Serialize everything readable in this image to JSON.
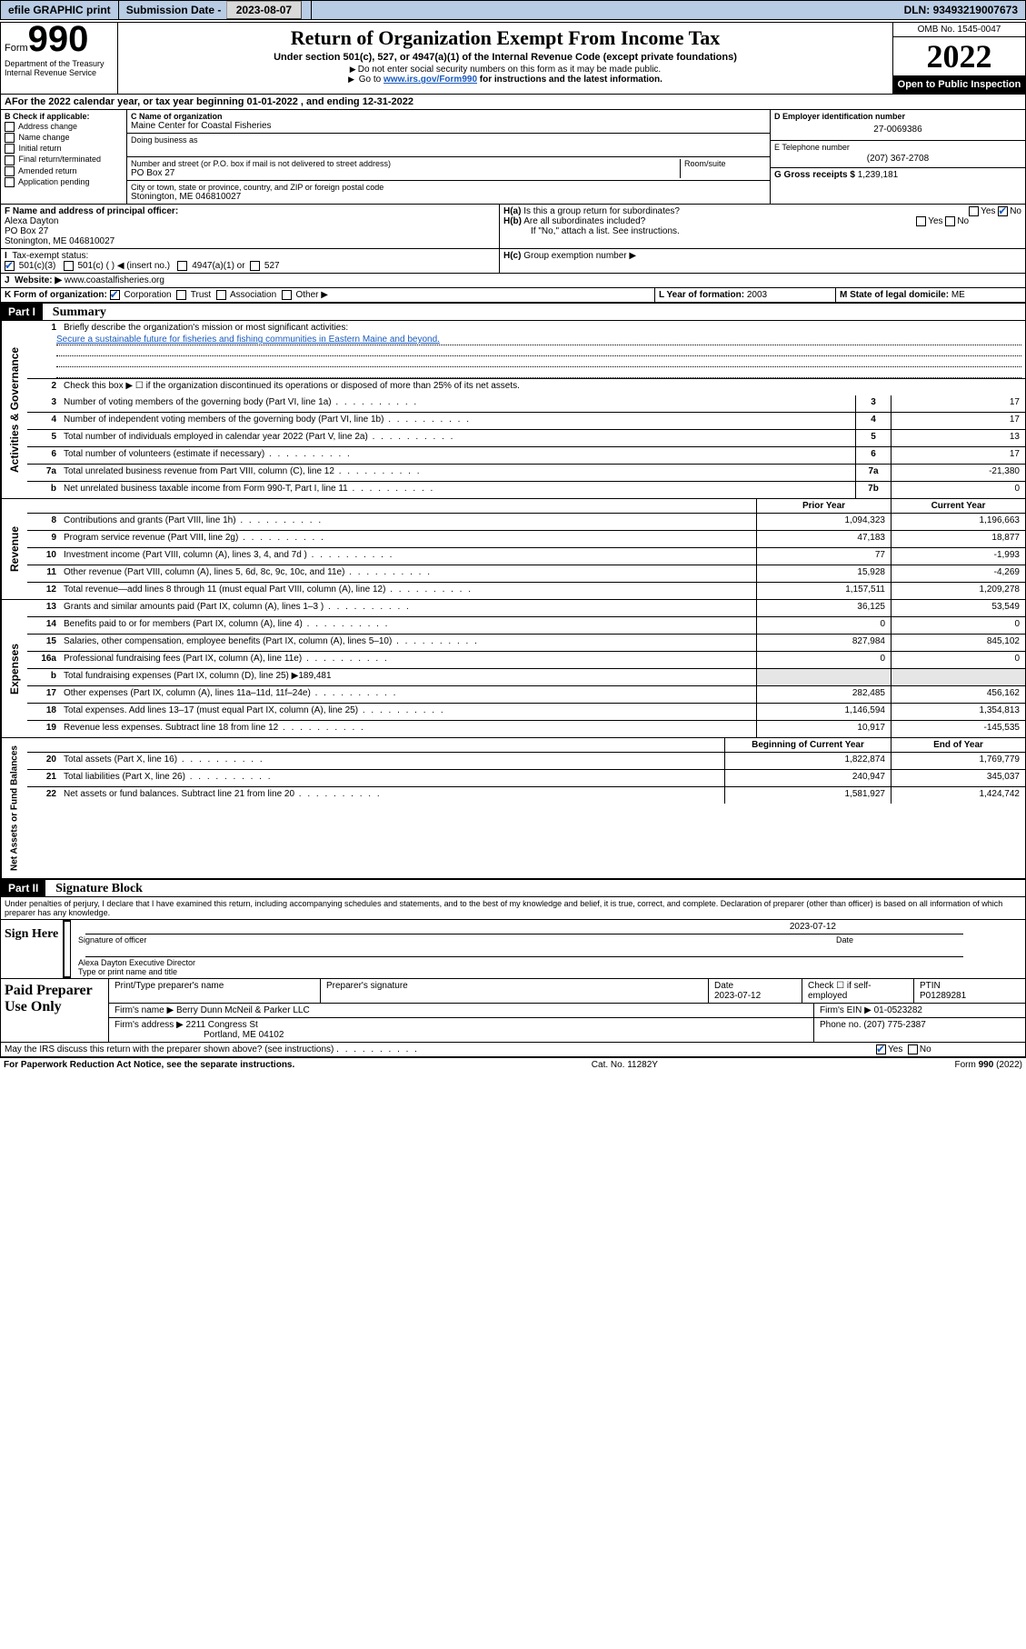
{
  "topbar": {
    "efile": "efile GRAPHIC print",
    "submission_label": "Submission Date - ",
    "submission_date": "2023-08-07",
    "dln_label": "DLN: ",
    "dln": "93493219007673"
  },
  "header": {
    "form_word": "Form",
    "form_num": "990",
    "dept": "Department of the Treasury\nInternal Revenue Service",
    "title": "Return of Organization Exempt From Income Tax",
    "subtitle": "Under section 501(c), 527, or 4947(a)(1) of the Internal Revenue Code (except private foundations)",
    "note1": "Do not enter social security numbers on this form as it may be made public.",
    "note2_pre": "Go to ",
    "note2_link": "www.irs.gov/Form990",
    "note2_post": " for instructions and the latest information.",
    "omb": "OMB No. 1545-0047",
    "year": "2022",
    "inspect": "Open to Public Inspection"
  },
  "lineA": "For the 2022 calendar year, or tax year beginning 01-01-2022    , and ending 12-31-2022",
  "colB": {
    "label": "B Check if applicable:",
    "items": [
      "Address change",
      "Name change",
      "Initial return",
      "Final return/terminated",
      "Amended return",
      "Application pending"
    ]
  },
  "colC": {
    "name_label": "C Name of organization",
    "name": "Maine Center for Coastal Fisheries",
    "dba_label": "Doing business as",
    "street_label": "Number and street (or P.O. box if mail is not delivered to street address)",
    "room_label": "Room/suite",
    "street": "PO Box 27",
    "city_label": "City or town, state or province, country, and ZIP or foreign postal code",
    "city": "Stonington, ME  046810027"
  },
  "colDE": {
    "d_label": "D Employer identification number",
    "ein": "27-0069386",
    "e_label": "E Telephone number",
    "phone": "(207) 367-2708",
    "g_label": "G Gross receipts $ ",
    "g_val": "1,239,181"
  },
  "lineF": {
    "label": "F  Name and address of principal officer:",
    "name": "Alexa Dayton",
    "addr1": "PO Box 27",
    "addr2": "Stonington, ME  046810027"
  },
  "lineH": {
    "a": "Is this a group return for subordinates?",
    "b": "Are all subordinates included?",
    "note": "If \"No,\" attach a list. See instructions.",
    "c_label": "Group exemption number ▶"
  },
  "lineI": {
    "label": "Tax-exempt status:",
    "opts": [
      "501(c)(3)",
      "501(c) (  ) ◀ (insert no.)",
      "4947(a)(1) or",
      "527"
    ]
  },
  "lineJ": {
    "label": "Website: ▶",
    "url": "www.coastalfisheries.org"
  },
  "lineK": {
    "label": "K Form of organization:",
    "opts": [
      "Corporation",
      "Trust",
      "Association",
      "Other ▶"
    ]
  },
  "lineL": {
    "label": "L Year of formation: ",
    "val": "2003"
  },
  "lineM": {
    "label": "M State of legal domicile: ",
    "val": "ME"
  },
  "part1": {
    "hdr": "Part I",
    "title": "Summary",
    "q1_label": "Briefly describe the organization's mission or most significant activities:",
    "q1_text": "Secure a sustainable future for fisheries and fishing communities in Eastern Maine and beyond.",
    "q2": "Check this box ▶ ☐  if the organization discontinued its operations or disposed of more than 25% of its net assets.",
    "side_ag": "Activities & Governance",
    "side_rev": "Revenue",
    "side_exp": "Expenses",
    "side_na": "Net Assets or Fund Balances",
    "col_prior": "Prior Year",
    "col_curr": "Current Year",
    "col_beg": "Beginning of Current Year",
    "col_end": "End of Year",
    "rows_ag": [
      {
        "n": "3",
        "d": "Number of voting members of the governing body (Part VI, line 1a)",
        "box": "3",
        "v": "17"
      },
      {
        "n": "4",
        "d": "Number of independent voting members of the governing body (Part VI, line 1b)",
        "box": "4",
        "v": "17"
      },
      {
        "n": "5",
        "d": "Total number of individuals employed in calendar year 2022 (Part V, line 2a)",
        "box": "5",
        "v": "13"
      },
      {
        "n": "6",
        "d": "Total number of volunteers (estimate if necessary)",
        "box": "6",
        "v": "17"
      },
      {
        "n": "7a",
        "d": "Total unrelated business revenue from Part VIII, column (C), line 12",
        "box": "7a",
        "v": "-21,380"
      },
      {
        "n": "b",
        "d": "Net unrelated business taxable income from Form 990-T, Part I, line 11",
        "box": "7b",
        "v": "0"
      }
    ],
    "rows_rev": [
      {
        "n": "8",
        "d": "Contributions and grants (Part VIII, line 1h)",
        "p": "1,094,323",
        "c": "1,196,663"
      },
      {
        "n": "9",
        "d": "Program service revenue (Part VIII, line 2g)",
        "p": "47,183",
        "c": "18,877"
      },
      {
        "n": "10",
        "d": "Investment income (Part VIII, column (A), lines 3, 4, and 7d )",
        "p": "77",
        "c": "-1,993"
      },
      {
        "n": "11",
        "d": "Other revenue (Part VIII, column (A), lines 5, 6d, 8c, 9c, 10c, and 11e)",
        "p": "15,928",
        "c": "-4,269"
      },
      {
        "n": "12",
        "d": "Total revenue—add lines 8 through 11 (must equal Part VIII, column (A), line 12)",
        "p": "1,157,511",
        "c": "1,209,278"
      }
    ],
    "rows_exp": [
      {
        "n": "13",
        "d": "Grants and similar amounts paid (Part IX, column (A), lines 1–3 )",
        "p": "36,125",
        "c": "53,549"
      },
      {
        "n": "14",
        "d": "Benefits paid to or for members (Part IX, column (A), line 4)",
        "p": "0",
        "c": "0"
      },
      {
        "n": "15",
        "d": "Salaries, other compensation, employee benefits (Part IX, column (A), lines 5–10)",
        "p": "827,984",
        "c": "845,102"
      },
      {
        "n": "16a",
        "d": "Professional fundraising fees (Part IX, column (A), line 11e)",
        "p": "0",
        "c": "0"
      },
      {
        "n": "b",
        "d": "Total fundraising expenses (Part IX, column (D), line 25) ▶189,481",
        "p": "",
        "c": "",
        "gray": true
      },
      {
        "n": "17",
        "d": "Other expenses (Part IX, column (A), lines 11a–11d, 11f–24e)",
        "p": "282,485",
        "c": "456,162"
      },
      {
        "n": "18",
        "d": "Total expenses. Add lines 13–17 (must equal Part IX, column (A), line 25)",
        "p": "1,146,594",
        "c": "1,354,813"
      },
      {
        "n": "19",
        "d": "Revenue less expenses. Subtract line 18 from line 12",
        "p": "10,917",
        "c": "-145,535"
      }
    ],
    "rows_na": [
      {
        "n": "20",
        "d": "Total assets (Part X, line 16)",
        "p": "1,822,874",
        "c": "1,769,779"
      },
      {
        "n": "21",
        "d": "Total liabilities (Part X, line 26)",
        "p": "240,947",
        "c": "345,037"
      },
      {
        "n": "22",
        "d": "Net assets or fund balances. Subtract line 21 from line 20",
        "p": "1,581,927",
        "c": "1,424,742"
      }
    ]
  },
  "part2": {
    "hdr": "Part II",
    "title": "Signature Block",
    "decl": "Under penalties of perjury, I declare that I have examined this return, including accompanying schedules and statements, and to the best of my knowledge and belief, it is true, correct, and complete. Declaration of preparer (other than officer) is based on all information of which preparer has any knowledge."
  },
  "sign": {
    "left": "Sign Here",
    "sig_label": "Signature of officer",
    "date_label": "Date",
    "date": "2023-07-12",
    "name": "Alexa Dayton Executive Director",
    "name_label": "Type or print name and title"
  },
  "preparer": {
    "left": "Paid Preparer Use Only",
    "h1": "Print/Type preparer's name",
    "h2": "Preparer's signature",
    "h3": "Date",
    "h3v": "2023-07-12",
    "h4": "Check ☐ if self-employed",
    "h5": "PTIN",
    "h5v": "P01289281",
    "firm_label": "Firm's name    ▶",
    "firm": "Berry Dunn McNeil & Parker LLC",
    "ein_label": "Firm's EIN ▶",
    "ein": "01-0523282",
    "addr_label": "Firm's address ▶",
    "addr1": "2211 Congress St",
    "addr2": "Portland, ME  04102",
    "phone_label": "Phone no.",
    "phone": "(207) 775-2387"
  },
  "discuss": "May the IRS discuss this return with the preparer shown above? (see instructions)",
  "footer": {
    "left": "For Paperwork Reduction Act Notice, see the separate instructions.",
    "mid": "Cat. No. 11282Y",
    "right_pre": "Form ",
    "right_b": "990",
    "right_post": " (2022)"
  }
}
